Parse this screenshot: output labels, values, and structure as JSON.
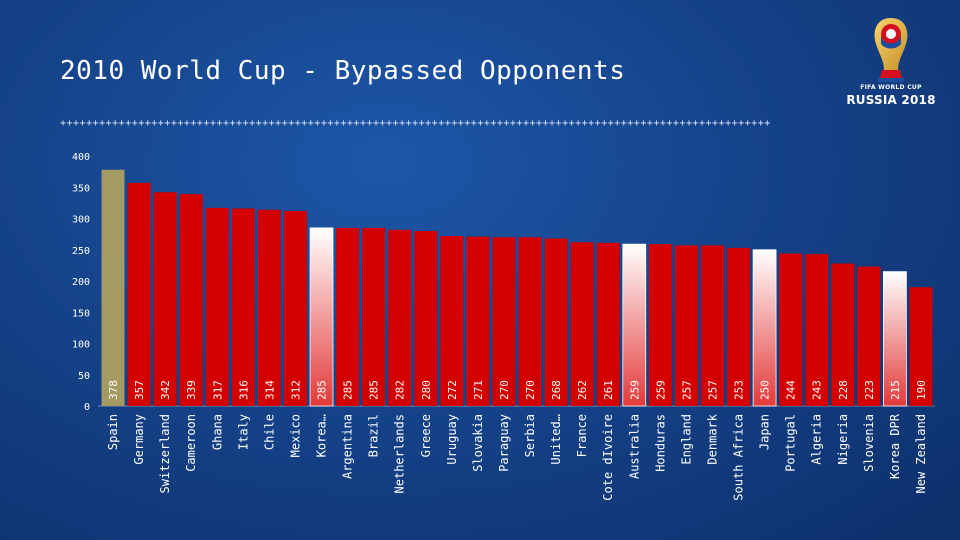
{
  "slide": {
    "title": "2010 World Cup - Bypassed Opponents",
    "divider": "+++++++++++++++++++++++++++++++++++++++++++++++++++++++++++++++++++++++++++++++++++++++++++++++++++++++++++++"
  },
  "logo": {
    "line1": "FIFA WORLD CUP",
    "line2": "RUSSIA 2018",
    "icon": "world-cup-trophy-icon"
  },
  "colors": {
    "bar_default": "#d40000",
    "bar_gold": "#a69a63",
    "bar_highlight": "#ffffff",
    "background": "#15438a"
  },
  "chart_data": {
    "type": "bar",
    "title": "2010 World Cup - Bypassed Opponents",
    "xlabel": "",
    "ylabel": "",
    "ylim": [
      0,
      400
    ],
    "yticks": [
      0,
      50,
      100,
      150,
      200,
      250,
      300,
      350,
      400
    ],
    "grid": false,
    "legend": "none",
    "categories": [
      "Spain",
      "Germany",
      "Switzerland",
      "Cameroon",
      "Ghana",
      "Italy",
      "Chile",
      "Mexico",
      "Korea…",
      "Argentina",
      "Brazil",
      "Netherlands",
      "Greece",
      "Uruguay",
      "Slovakia",
      "Paraguay",
      "Serbia",
      "United…",
      "France",
      "Cote dIvoire",
      "Australia",
      "Honduras",
      "England",
      "Denmark",
      "South Africa",
      "Japan",
      "Portugal",
      "Algeria",
      "Nigeria",
      "Slovenia",
      "Korea DPR",
      "New Zealand"
    ],
    "values": [
      378,
      357,
      342,
      339,
      317,
      316,
      314,
      312,
      285,
      285,
      285,
      282,
      280,
      272,
      271,
      270,
      270,
      268,
      262,
      261,
      259,
      259,
      257,
      257,
      253,
      250,
      244,
      243,
      228,
      223,
      215,
      190
    ],
    "value_labels": [
      "378",
      "357",
      "342",
      "339",
      "317",
      "316",
      "314",
      "312",
      "285",
      "285",
      "285",
      "282",
      "280",
      "272",
      "271",
      "270",
      "270",
      "268",
      "262",
      "261",
      "259",
      "259",
      "257",
      "257",
      "253",
      "250",
      "244",
      "243",
      "228",
      "223",
      "215",
      "190"
    ],
    "styles": [
      "gold",
      "red",
      "red",
      "red",
      "red",
      "red",
      "red",
      "red",
      "highlight",
      "red",
      "red",
      "red",
      "red",
      "red",
      "red",
      "red",
      "red",
      "red",
      "red",
      "red",
      "highlight",
      "red",
      "red",
      "red",
      "red",
      "highlight",
      "red",
      "red",
      "red",
      "red",
      "highlight",
      "red"
    ]
  }
}
